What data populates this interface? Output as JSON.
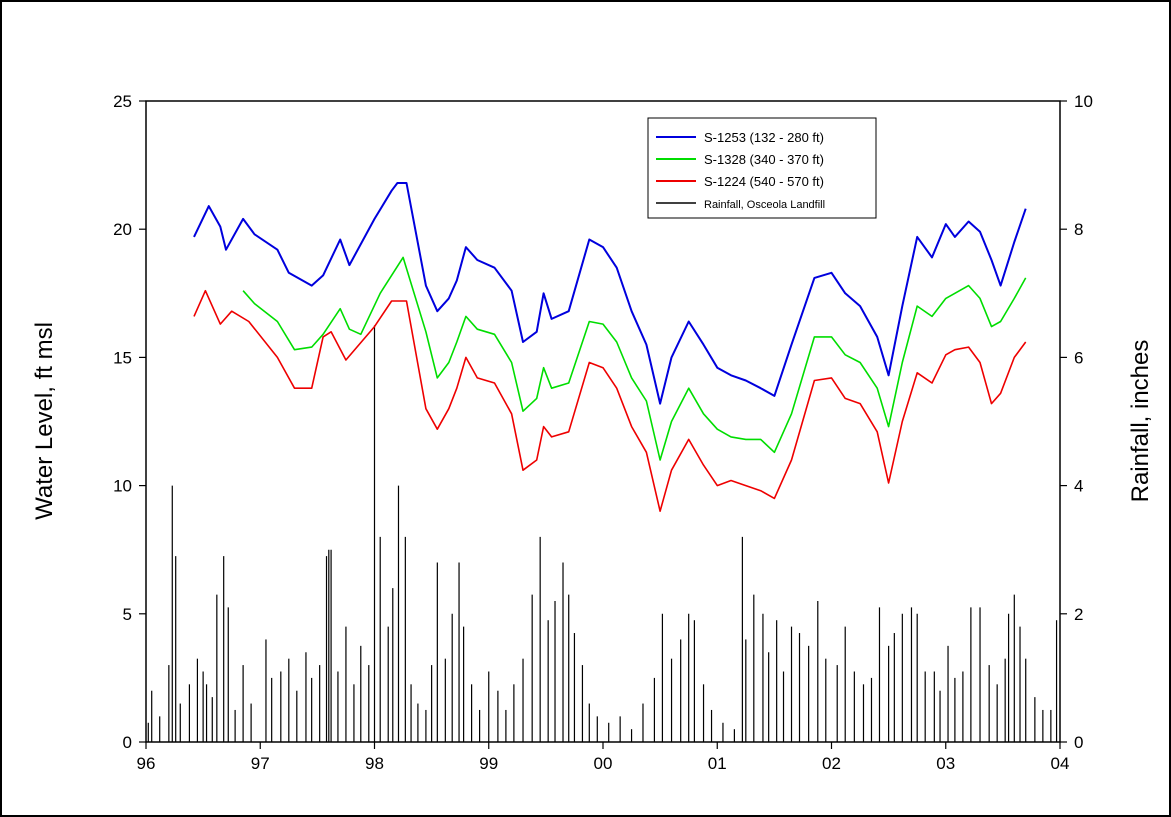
{
  "chart_data": {
    "type": "line",
    "title": "",
    "xlabel": "",
    "ylabel": "Water Level, ft msl",
    "y2label": "Rainfall, inches",
    "xlim": [
      1996.0,
      2004.0
    ],
    "ylim": [
      0,
      25
    ],
    "y2lim": [
      0,
      10
    ],
    "x_ticks": [
      1996,
      1997,
      1998,
      1999,
      2000,
      2001,
      2002,
      2003,
      2004
    ],
    "x_tick_labels": [
      "96",
      "97",
      "98",
      "99",
      "00",
      "01",
      "02",
      "03",
      "04"
    ],
    "y_ticks": [
      0,
      5,
      10,
      15,
      20,
      25
    ],
    "y_tick_labels": [
      "0",
      "5",
      "10",
      "15",
      "20",
      "25"
    ],
    "y2_ticks": [
      0,
      2,
      4,
      6,
      8,
      10
    ],
    "y2_tick_labels": [
      "0",
      "2",
      "4",
      "6",
      "8",
      "10"
    ],
    "grid": false,
    "legend_position": "top-right",
    "series": [
      {
        "name": "S-1253 (132 - 280 ft)",
        "axis": "left",
        "color": "#0000dd",
        "x": [
          1996.42,
          1996.55,
          1996.65,
          1996.7,
          1996.85,
          1996.95,
          1997.15,
          1997.25,
          1997.45,
          1997.55,
          1997.7,
          1997.78,
          1998.0,
          1998.15,
          1998.2,
          1998.28,
          1998.45,
          1998.55,
          1998.65,
          1998.72,
          1998.8,
          1998.9,
          1999.05,
          1999.2,
          1999.3,
          1999.42,
          1999.48,
          1999.55,
          1999.7,
          1999.88,
          2000.0,
          2000.12,
          2000.25,
          2000.38,
          2000.5,
          2000.6,
          2000.75,
          2000.88,
          2001.0,
          2001.12,
          2001.25,
          2001.38,
          2001.5,
          2001.65,
          2001.85,
          2002.0,
          2002.12,
          2002.25,
          2002.4,
          2002.5,
          2002.62,
          2002.75,
          2002.88,
          2003.0,
          2003.08,
          2003.2,
          2003.3,
          2003.4,
          2003.48,
          2003.6,
          2003.7
        ],
        "y": [
          19.7,
          20.9,
          20.1,
          19.2,
          20.4,
          19.8,
          19.2,
          18.3,
          17.8,
          18.2,
          19.6,
          18.6,
          20.4,
          21.5,
          21.8,
          21.8,
          17.8,
          16.8,
          17.3,
          18.0,
          19.3,
          18.8,
          18.5,
          17.6,
          15.6,
          16.0,
          17.5,
          16.5,
          16.8,
          19.6,
          19.3,
          18.5,
          16.8,
          15.5,
          13.2,
          15.0,
          16.4,
          15.5,
          14.6,
          14.3,
          14.1,
          13.8,
          13.5,
          15.5,
          18.1,
          18.3,
          17.5,
          17.0,
          15.8,
          14.3,
          17.0,
          19.7,
          18.9,
          20.2,
          19.7,
          20.3,
          19.9,
          18.8,
          17.8,
          19.5,
          20.8
        ]
      },
      {
        "name": "S-1328 (340 - 370 ft)",
        "axis": "left",
        "color": "#00dd00",
        "x": [
          1996.85,
          1996.95,
          1997.15,
          1997.3,
          1997.45,
          1997.55,
          1997.7,
          1997.78,
          1997.88,
          1998.05,
          1998.25,
          1998.45,
          1998.55,
          1998.65,
          1998.72,
          1998.8,
          1998.9,
          1999.05,
          1999.2,
          1999.3,
          1999.42,
          1999.48,
          1999.55,
          1999.7,
          1999.88,
          2000.0,
          2000.12,
          2000.25,
          2000.38,
          2000.5,
          2000.6,
          2000.75,
          2000.88,
          2001.0,
          2001.12,
          2001.25,
          2001.38,
          2001.5,
          2001.65,
          2001.85,
          2002.0,
          2002.12,
          2002.25,
          2002.4,
          2002.5,
          2002.62,
          2002.75,
          2002.88,
          2003.0,
          2003.08,
          2003.2,
          2003.3,
          2003.4,
          2003.48,
          2003.6,
          2003.7
        ],
        "y": [
          17.6,
          17.1,
          16.4,
          15.3,
          15.4,
          15.9,
          16.9,
          16.1,
          15.9,
          17.5,
          18.9,
          16.0,
          14.2,
          14.8,
          15.6,
          16.6,
          16.1,
          15.9,
          14.8,
          12.9,
          13.4,
          14.6,
          13.8,
          14.0,
          16.4,
          16.3,
          15.6,
          14.2,
          13.3,
          11.0,
          12.5,
          13.8,
          12.8,
          12.2,
          11.9,
          11.8,
          11.8,
          11.3,
          12.8,
          15.8,
          15.8,
          15.1,
          14.8,
          13.8,
          12.3,
          14.8,
          17.0,
          16.6,
          17.3,
          17.5,
          17.8,
          17.3,
          16.2,
          16.4,
          17.3,
          18.1
        ]
      },
      {
        "name": "S-1224 (540 - 570 ft)",
        "axis": "left",
        "color": "#ee0000",
        "x": [
          1996.42,
          1996.52,
          1996.65,
          1996.75,
          1996.9,
          1997.15,
          1997.3,
          1997.45,
          1997.55,
          1997.62,
          1997.75,
          1998.0,
          1998.15,
          1998.28,
          1998.45,
          1998.55,
          1998.65,
          1998.72,
          1998.8,
          1998.9,
          1999.05,
          1999.2,
          1999.3,
          1999.42,
          1999.48,
          1999.55,
          1999.7,
          1999.88,
          2000.0,
          2000.12,
          2000.25,
          2000.38,
          2000.5,
          2000.6,
          2000.75,
          2000.88,
          2001.0,
          2001.12,
          2001.25,
          2001.38,
          2001.5,
          2001.65,
          2001.85,
          2002.0,
          2002.12,
          2002.25,
          2002.4,
          2002.5,
          2002.62,
          2002.75,
          2002.88,
          2003.0,
          2003.08,
          2003.2,
          2003.3,
          2003.4,
          2003.48,
          2003.6,
          2003.7
        ],
        "y": [
          16.6,
          17.6,
          16.3,
          16.8,
          16.4,
          15.0,
          13.8,
          13.8,
          15.8,
          16.0,
          14.9,
          16.2,
          17.2,
          17.2,
          13.0,
          12.2,
          13.0,
          13.8,
          15.0,
          14.2,
          14.0,
          12.8,
          10.6,
          11.0,
          12.3,
          11.9,
          12.1,
          14.8,
          14.6,
          13.8,
          12.3,
          11.3,
          9.0,
          10.6,
          11.8,
          10.8,
          10.0,
          10.2,
          10.0,
          9.8,
          9.5,
          11.0,
          14.1,
          14.2,
          13.4,
          13.2,
          12.1,
          10.1,
          12.5,
          14.4,
          14.0,
          15.1,
          15.3,
          15.4,
          14.8,
          13.2,
          13.6,
          15.0,
          15.6
        ]
      },
      {
        "name": "Rainfall, Osceola Landfill",
        "axis": "right",
        "type": "bar",
        "color": "#000000",
        "x": [
          1996.02,
          1996.05,
          1996.12,
          1996.2,
          1996.23,
          1996.26,
          1996.3,
          1996.38,
          1996.45,
          1996.5,
          1996.53,
          1996.58,
          1996.62,
          1996.68,
          1996.72,
          1996.78,
          1996.85,
          1996.92,
          1997.05,
          1997.1,
          1997.18,
          1997.25,
          1997.32,
          1997.4,
          1997.45,
          1997.52,
          1997.58,
          1997.6,
          1997.62,
          1997.68,
          1997.75,
          1997.82,
          1997.88,
          1997.95,
          1998.0,
          1998.05,
          1998.12,
          1998.16,
          1998.21,
          1998.27,
          1998.32,
          1998.38,
          1998.45,
          1998.5,
          1998.55,
          1998.62,
          1998.68,
          1998.74,
          1998.78,
          1998.85,
          1998.92,
          1999.0,
          1999.08,
          1999.15,
          1999.22,
          1999.3,
          1999.38,
          1999.45,
          1999.52,
          1999.58,
          1999.65,
          1999.7,
          1999.75,
          1999.82,
          1999.88,
          1999.95,
          2000.05,
          2000.15,
          2000.25,
          2000.35,
          2000.45,
          2000.52,
          2000.6,
          2000.68,
          2000.75,
          2000.8,
          2000.88,
          2000.95,
          2001.05,
          2001.15,
          2001.22,
          2001.25,
          2001.32,
          2001.4,
          2001.45,
          2001.52,
          2001.58,
          2001.65,
          2001.72,
          2001.8,
          2001.88,
          2001.95,
          2002.05,
          2002.12,
          2002.2,
          2002.28,
          2002.35,
          2002.42,
          2002.5,
          2002.55,
          2002.62,
          2002.7,
          2002.75,
          2002.82,
          2002.9,
          2002.95,
          2003.02,
          2003.08,
          2003.15,
          2003.22,
          2003.3,
          2003.38,
          2003.45,
          2003.52,
          2003.55,
          2003.6,
          2003.65,
          2003.7,
          2003.78,
          2003.85,
          2003.92,
          2003.97
        ],
        "y": [
          0.3,
          0.8,
          0.4,
          1.2,
          4.0,
          2.9,
          0.6,
          0.9,
          1.3,
          1.1,
          0.9,
          0.7,
          2.3,
          2.9,
          2.1,
          0.5,
          1.2,
          0.6,
          1.6,
          1.0,
          1.1,
          1.3,
          0.8,
          1.4,
          1.0,
          1.2,
          2.9,
          3.0,
          3.0,
          1.1,
          1.8,
          0.9,
          1.5,
          1.2,
          6.5,
          3.2,
          1.8,
          2.4,
          4.0,
          3.2,
          0.9,
          0.6,
          0.5,
          1.2,
          2.8,
          1.3,
          2.0,
          2.8,
          1.8,
          0.9,
          0.5,
          1.1,
          0.8,
          0.5,
          0.9,
          1.3,
          2.3,
          3.2,
          1.9,
          2.2,
          2.8,
          2.3,
          1.7,
          1.2,
          0.6,
          0.4,
          0.3,
          0.4,
          0.2,
          0.6,
          1.0,
          2.0,
          1.3,
          1.6,
          2.0,
          1.9,
          0.9,
          0.5,
          0.3,
          0.2,
          3.2,
          1.6,
          2.3,
          2.0,
          1.4,
          1.9,
          1.1,
          1.8,
          1.7,
          1.5,
          2.2,
          1.3,
          1.2,
          1.8,
          1.1,
          0.9,
          1.0,
          2.1,
          1.5,
          1.7,
          2.0,
          2.1,
          2.0,
          1.1,
          1.1,
          0.8,
          1.5,
          1.0,
          1.1,
          2.1,
          2.1,
          1.2,
          0.9,
          1.3,
          2.0,
          2.3,
          1.8,
          1.3,
          0.7,
          0.5,
          0.5,
          1.9
        ]
      }
    ]
  }
}
